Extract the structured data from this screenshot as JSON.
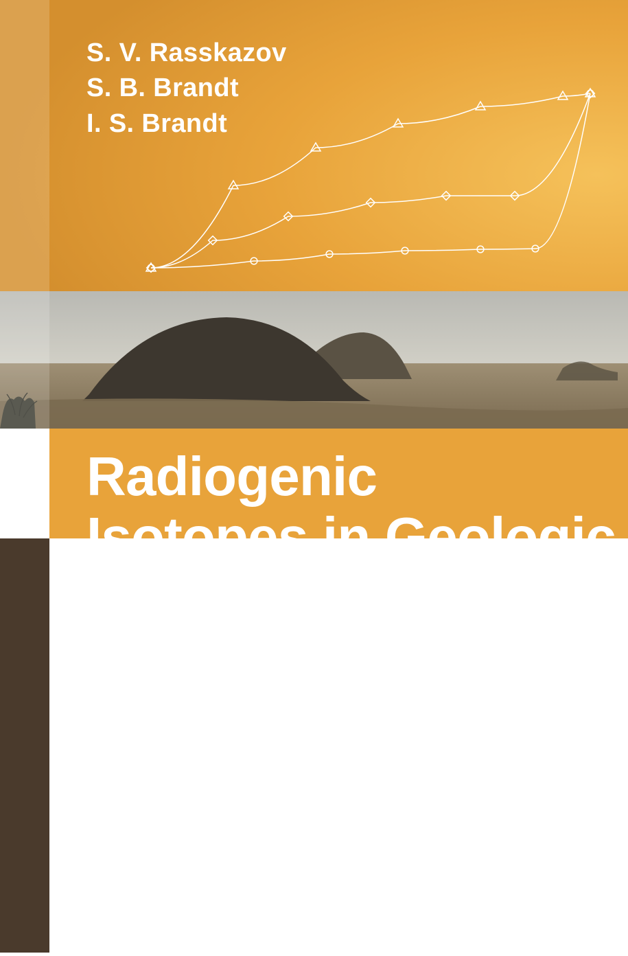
{
  "authors": [
    "S. V. Rasskazov",
    "S. B. Brandt",
    "I. S. Brandt"
  ],
  "title_lines": [
    "Radiogenic",
    "Isotopes in Geologic"
  ],
  "colors": {
    "brand_orange": "#e8a33a",
    "brand_orange_light": "#f2b24a",
    "brand_orange_dark": "#b27a2a",
    "title_bg": "#e8a33a",
    "accent_strip": "#4a3a2c",
    "sky": "#b9b9b3",
    "sky_horizon": "#d6d4ca",
    "desert_near": "#7a6a50",
    "desert_far": "#9e8f74",
    "hill_dark": "#3d372f",
    "hill_mid": "#5a5244",
    "text_white": "#ffffff",
    "chart_line": "#ffffff"
  },
  "typography": {
    "author_fontsize": 38,
    "title_fontsize": 80
  },
  "chart": {
    "type": "line",
    "description": "three converging curved line series with markers on orange background",
    "stroke_width": 1.5,
    "marker_size": 7,
    "series": [
      {
        "marker": "triangle",
        "points": [
          [
            60,
            270
          ],
          [
            180,
            150
          ],
          [
            300,
            95
          ],
          [
            420,
            60
          ],
          [
            540,
            35
          ],
          [
            660,
            20
          ],
          [
            700,
            16
          ]
        ]
      },
      {
        "marker": "diamond",
        "points": [
          [
            60,
            270
          ],
          [
            150,
            230
          ],
          [
            260,
            195
          ],
          [
            380,
            175
          ],
          [
            490,
            165
          ],
          [
            590,
            165
          ],
          [
            700,
            16
          ]
        ]
      },
      {
        "marker": "circle",
        "points": [
          [
            60,
            270
          ],
          [
            210,
            260
          ],
          [
            320,
            250
          ],
          [
            430,
            245
          ],
          [
            540,
            243
          ],
          [
            620,
            242
          ],
          [
            700,
            16
          ]
        ]
      }
    ],
    "line_color": "#ffffff"
  }
}
